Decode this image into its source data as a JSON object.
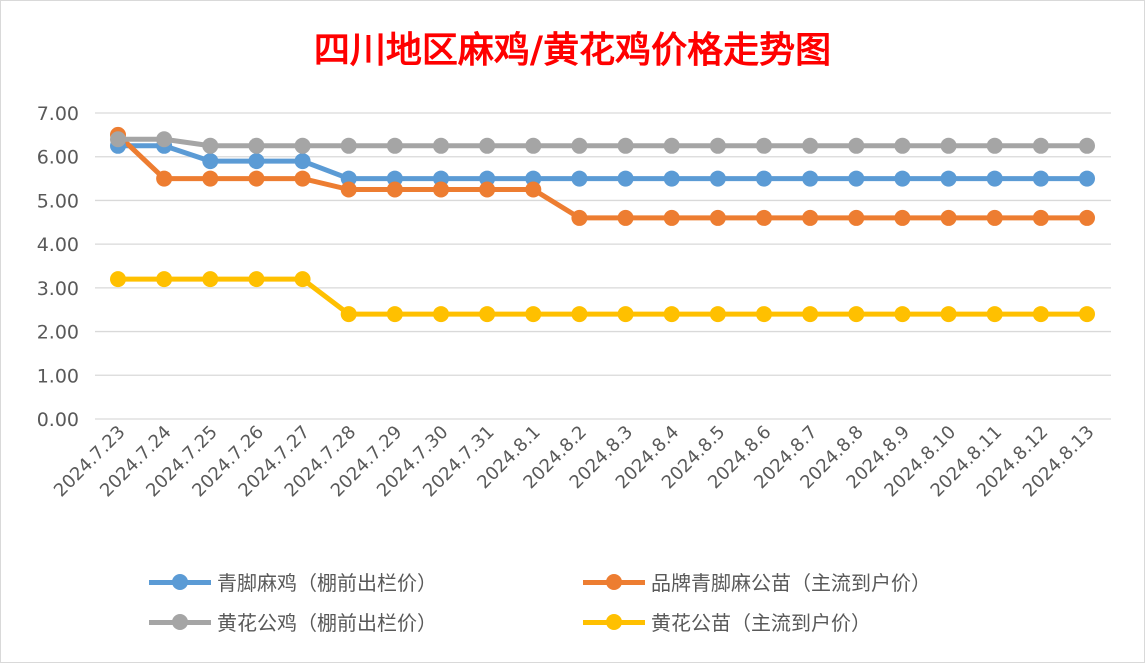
{
  "chart_data": {
    "type": "line",
    "title": "四川地区麻鸡/黄花鸡价格走势图",
    "xlabel": "",
    "ylabel": "",
    "ylim": [
      0,
      7
    ],
    "yticks": [
      "0.00",
      "1.00",
      "2.00",
      "3.00",
      "4.00",
      "5.00",
      "6.00",
      "7.00"
    ],
    "grid": true,
    "legend_position": "bottom",
    "categories": [
      "2024.7.23",
      "2024.7.24",
      "2024.7.25",
      "2024.7.26",
      "2024.7.27",
      "2024.7.28",
      "2024.7.29",
      "2024.7.30",
      "2024.7.31",
      "2024.8.1",
      "2024.8.2",
      "2024.8.3",
      "2024.8.4",
      "2024.8.5",
      "2024.8.6",
      "2024.8.7",
      "2024.8.8",
      "2024.8.9",
      "2024.8.10",
      "2024.8.11",
      "2024.8.12",
      "2024.8.13"
    ],
    "series": [
      {
        "name": "青脚麻鸡（棚前出栏价）",
        "color": "#5b9bd5",
        "values": [
          6.25,
          6.25,
          5.9,
          5.9,
          5.9,
          5.5,
          5.5,
          5.5,
          5.5,
          5.5,
          5.5,
          5.5,
          5.5,
          5.5,
          5.5,
          5.5,
          5.5,
          5.5,
          5.5,
          5.5,
          5.5,
          5.5
        ]
      },
      {
        "name": "品牌青脚麻公苗（主流到户价）",
        "color": "#ed7d31",
        "values": [
          6.5,
          5.5,
          5.5,
          5.5,
          5.5,
          5.25,
          5.25,
          5.25,
          5.25,
          5.25,
          4.6,
          4.6,
          4.6,
          4.6,
          4.6,
          4.6,
          4.6,
          4.6,
          4.6,
          4.6,
          4.6,
          4.6
        ]
      },
      {
        "name": "黄花公鸡（棚前出栏价）",
        "color": "#a5a5a5",
        "values": [
          6.4,
          6.4,
          6.25,
          6.25,
          6.25,
          6.25,
          6.25,
          6.25,
          6.25,
          6.25,
          6.25,
          6.25,
          6.25,
          6.25,
          6.25,
          6.25,
          6.25,
          6.25,
          6.25,
          6.25,
          6.25,
          6.25
        ]
      },
      {
        "name": "黄花公苗（主流到户价）",
        "color": "#ffc000",
        "values": [
          3.2,
          3.2,
          3.2,
          3.2,
          3.2,
          2.4,
          2.4,
          2.4,
          2.4,
          2.4,
          2.4,
          2.4,
          2.4,
          2.4,
          2.4,
          2.4,
          2.4,
          2.4,
          2.4,
          2.4,
          2.4,
          2.4
        ]
      }
    ]
  }
}
